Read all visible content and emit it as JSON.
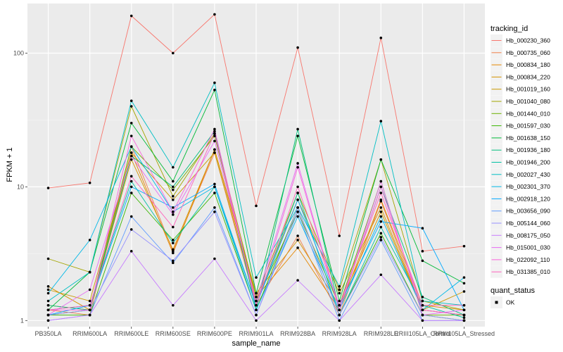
{
  "chart_data": {
    "type": "line",
    "xlabel": "sample_name",
    "ylabel": "FPKM + 1",
    "y_scale": "log10",
    "ylim": [
      0.9,
      235
    ],
    "y_ticks": [
      1,
      10,
      100
    ],
    "y_tick_labels": [
      "1",
      "10",
      "100"
    ],
    "grid": true,
    "legend_position": "right",
    "categories": [
      "PB350LA",
      "RRIM600LA",
      "RRIM600LE",
      "RRIM600SE",
      "RRIM600PE",
      "RRIM901LA",
      "RRIM928BA",
      "RRIM928LA",
      "RRIM928LE",
      "RRIII105LA_Control",
      "RRIII105LA_Stressed"
    ],
    "legend": {
      "color_title": "tracking_id",
      "shape_title": "quant_status",
      "shape_label": "OK"
    },
    "series": [
      {
        "name": "Hb_000230_360",
        "color": "#F8766D",
        "values": [
          9.8,
          10.7,
          190,
          100,
          195,
          7.2,
          110,
          4.3,
          130,
          3.3,
          3.6
        ]
      },
      {
        "name": "Hb_000735_060",
        "color": "#F07F49",
        "values": [
          1.2,
          1.1,
          20,
          3.3,
          18,
          1.3,
          4.3,
          1.1,
          7.8,
          1.2,
          1.1
        ]
      },
      {
        "name": "Hb_000834_180",
        "color": "#E58700",
        "values": [
          1.3,
          1.2,
          18,
          3.2,
          19,
          1.5,
          3.5,
          1.2,
          8.0,
          1.3,
          1.2
        ]
      },
      {
        "name": "Hb_000834_220",
        "color": "#D39200",
        "values": [
          1.8,
          1.2,
          16,
          3.4,
          19,
          1.6,
          4.0,
          1.3,
          6.5,
          1.2,
          1.1
        ]
      },
      {
        "name": "Hb_001019_160",
        "color": "#C99800",
        "values": [
          1.7,
          1.4,
          18,
          8.0,
          18,
          1.4,
          8.0,
          1.6,
          7.0,
          1.2,
          1.65
        ]
      },
      {
        "name": "Hb_001040_080",
        "color": "#A3A500",
        "values": [
          2.9,
          2.3,
          40,
          8.5,
          25,
          1.5,
          9.0,
          1.7,
          16,
          1.4,
          1.2
        ]
      },
      {
        "name": "Hb_001440_010",
        "color": "#6BB100",
        "values": [
          1.1,
          1.2,
          20,
          9.5,
          24,
          1.4,
          6.5,
          1.3,
          11,
          1.1,
          1.1
        ]
      },
      {
        "name": "Hb_001597_030",
        "color": "#39B600",
        "values": [
          1.1,
          1.1,
          9.0,
          4.0,
          9.0,
          1.2,
          7.0,
          1.1,
          4.5,
          1.1,
          1.0
        ]
      },
      {
        "name": "Hb_001638_150",
        "color": "#00BA38",
        "values": [
          1.2,
          2.3,
          30,
          11,
          53,
          1.6,
          24,
          1.4,
          16,
          2.8,
          1.9
        ]
      },
      {
        "name": "Hb_001936_180",
        "color": "#00BF7D",
        "values": [
          1.3,
          1.2,
          17,
          10,
          26,
          1.2,
          27,
          1.2,
          10,
          1.5,
          1.1
        ]
      },
      {
        "name": "Hb_001946_200",
        "color": "#00C1A3",
        "values": [
          1.2,
          1.3,
          11,
          3.8,
          10,
          1.3,
          9.0,
          1.1,
          5.0,
          1.3,
          1.05
        ]
      },
      {
        "name": "Hb_002027_430",
        "color": "#00BFC4",
        "values": [
          1.4,
          2.3,
          44,
          14,
          60,
          2.1,
          7.0,
          1.8,
          31,
          1.4,
          1.3
        ]
      },
      {
        "name": "Hb_002301_370",
        "color": "#00B8E7",
        "values": [
          1.6,
          4.0,
          20,
          6.5,
          10,
          1.2,
          6.0,
          1.2,
          6.0,
          1.2,
          2.1
        ]
      },
      {
        "name": "Hb_002918_120",
        "color": "#00A9FF",
        "values": [
          1.1,
          1.3,
          10,
          7.0,
          10.5,
          1.3,
          8.0,
          1.3,
          5.5,
          4.9,
          1.2
        ]
      },
      {
        "name": "Hb_003656_090",
        "color": "#619CFF",
        "values": [
          1.0,
          1.1,
          6.0,
          2.7,
          7.0,
          1.1,
          6.5,
          1.0,
          4.0,
          1.0,
          1.0
        ]
      },
      {
        "name": "Hb_005144_060",
        "color": "#9590FF",
        "values": [
          1.1,
          1.2,
          4.8,
          2.8,
          6.5,
          1.1,
          7.0,
          1.1,
          4.2,
          1.1,
          1.0
        ]
      },
      {
        "name": "Hb_008175_050",
        "color": "#C77CFF",
        "values": [
          1.0,
          1.1,
          3.3,
          1.3,
          2.9,
          1.0,
          2.0,
          1.0,
          2.2,
          1.0,
          1.0
        ]
      },
      {
        "name": "Hb_015001_030",
        "color": "#E76BF3",
        "values": [
          1.1,
          1.7,
          17,
          6.2,
          22,
          1.4,
          15,
          1.2,
          11,
          1.1,
          1.2
        ]
      },
      {
        "name": "Hb_022092_110",
        "color": "#FA62DB",
        "values": [
          1.2,
          1.2,
          24,
          6.5,
          27,
          1.3,
          14,
          1.2,
          10,
          1.2,
          1.1
        ]
      },
      {
        "name": "Hb_031385_010",
        "color": "#FF62BC",
        "values": [
          1.2,
          1.3,
          12,
          5.0,
          25,
          1.3,
          10,
          1.3,
          9.0,
          1.3,
          1.3
        ]
      }
    ]
  }
}
